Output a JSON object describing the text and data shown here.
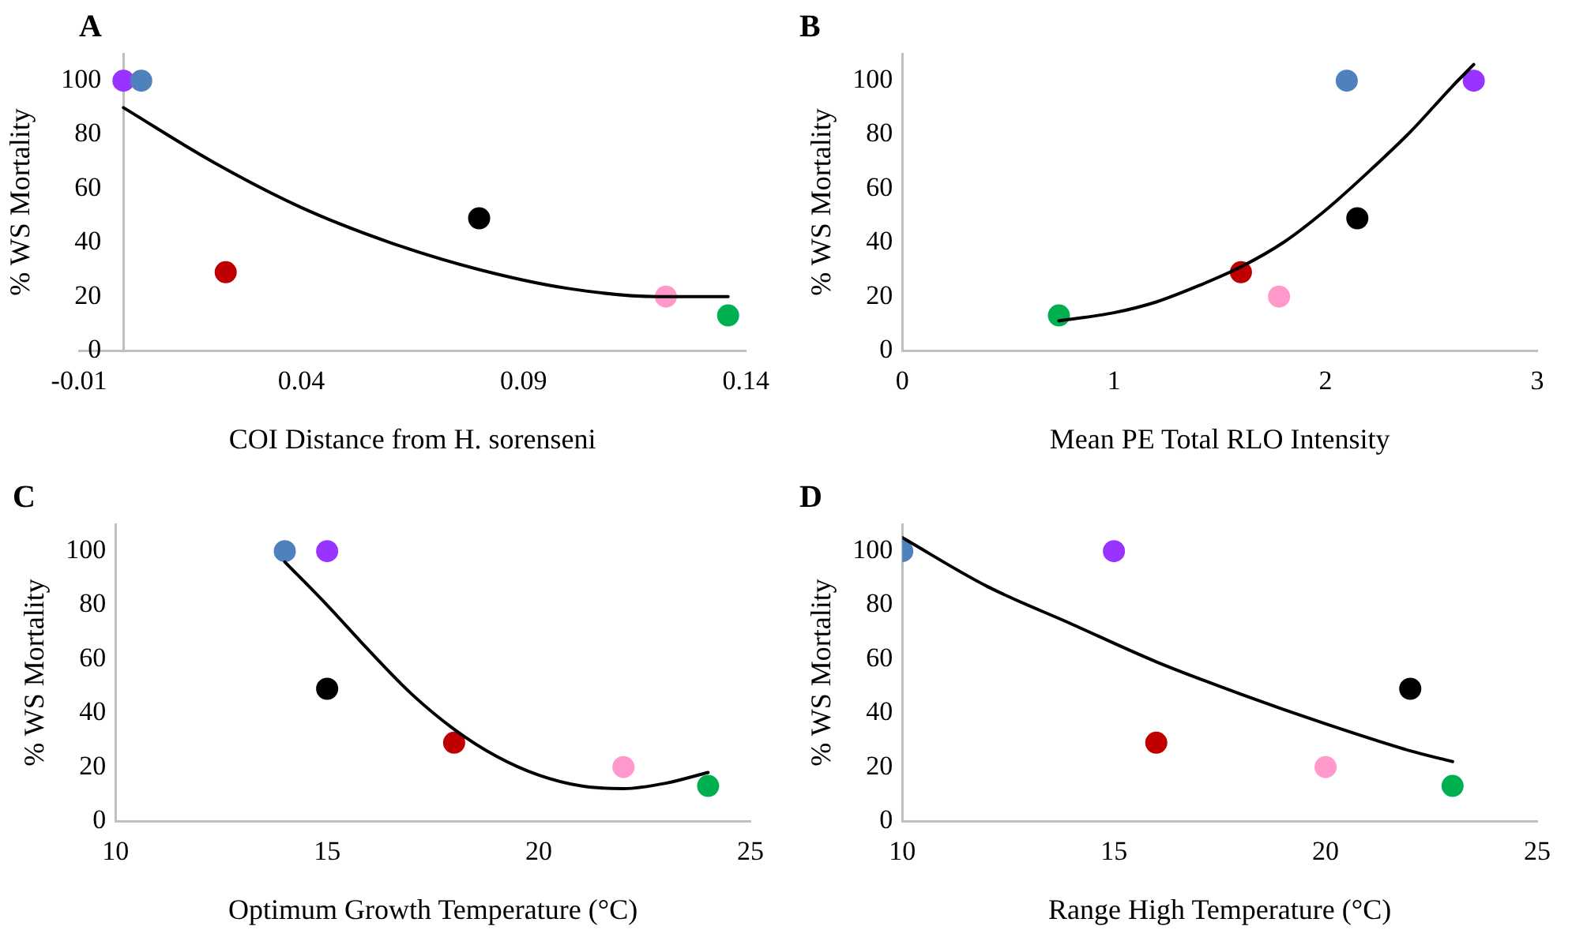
{
  "chart_data": [
    {
      "type": "scatter",
      "title": "A",
      "xlabel": "COI Distance from H. sorenseni",
      "ylabel": "% WS Mortality",
      "xlim": [
        -0.01,
        0.14
      ],
      "xticks": [
        -0.01,
        0.04,
        0.09,
        0.14
      ],
      "ylim": [
        0,
        110
      ],
      "yticks": [
        0,
        20,
        40,
        60,
        80,
        100
      ],
      "legend": false,
      "series": [
        {
          "type": "scatter",
          "x": [
            0.0,
            0.004,
            0.023,
            0.08,
            0.122,
            0.136
          ],
          "values": [
            100,
            100,
            29,
            49,
            20,
            13
          ],
          "colors": [
            "#9933ff",
            "#4f81bd",
            "#c00000",
            "#000000",
            "#ff99cc",
            "#00b050"
          ],
          "marker": "circle"
        },
        {
          "type": "line",
          "x": [
            0.0,
            0.02,
            0.04,
            0.06,
            0.08,
            0.1,
            0.12,
            0.136
          ],
          "values": [
            90,
            70,
            53,
            40,
            30,
            23,
            20,
            20
          ],
          "color": "#000000",
          "marker": "none"
        }
      ]
    },
    {
      "type": "scatter",
      "title": "B",
      "xlabel": "Mean PE Total RLO Intensity",
      "ylabel": "% WS Mortality",
      "xlim": [
        0,
        3
      ],
      "xticks": [
        0,
        1,
        2,
        3
      ],
      "ylim": [
        0,
        110
      ],
      "yticks": [
        0,
        20,
        40,
        60,
        80,
        100
      ],
      "legend": false,
      "series": [
        {
          "type": "scatter",
          "x": [
            0.74,
            1.6,
            1.78,
            2.1,
            2.15,
            2.7
          ],
          "values": [
            13,
            29,
            20,
            100,
            49,
            100
          ],
          "colors": [
            "#00b050",
            "#c00000",
            "#ff99cc",
            "#4f81bd",
            "#000000",
            "#9933ff"
          ],
          "marker": "circle"
        },
        {
          "type": "line",
          "x": [
            0.74,
            1.0,
            1.2,
            1.4,
            1.6,
            1.8,
            2.0,
            2.2,
            2.4,
            2.6,
            2.7
          ],
          "values": [
            11,
            14,
            18,
            24,
            31,
            40,
            52,
            66,
            81,
            98,
            106
          ],
          "color": "#000000",
          "marker": "none"
        }
      ]
    },
    {
      "type": "scatter",
      "title": "C",
      "xlabel": "Optimum Growth Temperature (°C)",
      "ylabel": "% WS Mortality",
      "xlim": [
        10,
        25
      ],
      "xticks": [
        10,
        15,
        20,
        25
      ],
      "ylim": [
        0,
        110
      ],
      "yticks": [
        0,
        20,
        40,
        60,
        80,
        100
      ],
      "legend": false,
      "series": [
        {
          "type": "scatter",
          "x": [
            14,
            15,
            15,
            18,
            22,
            24
          ],
          "values": [
            100,
            100,
            49,
            29,
            20,
            13
          ],
          "colors": [
            "#4f81bd",
            "#9933ff",
            "#000000",
            "#c00000",
            "#ff99cc",
            "#00b050"
          ],
          "marker": "circle"
        },
        {
          "type": "line",
          "x": [
            14,
            15,
            16,
            17,
            18,
            19,
            20,
            21,
            22,
            23,
            24
          ],
          "values": [
            96,
            80,
            63,
            47,
            34,
            24,
            17,
            13,
            12,
            14,
            18
          ],
          "color": "#000000",
          "marker": "none"
        }
      ]
    },
    {
      "type": "scatter",
      "title": "D",
      "xlabel": "Range High Temperature (°C)",
      "ylabel": "% WS Mortality",
      "xlim": [
        10,
        25
      ],
      "xticks": [
        10,
        15,
        20,
        25
      ],
      "ylim": [
        0,
        110
      ],
      "yticks": [
        0,
        20,
        40,
        60,
        80,
        100
      ],
      "legend": false,
      "series": [
        {
          "type": "scatter",
          "x": [
            10,
            15,
            16,
            20,
            22,
            23
          ],
          "values": [
            100,
            100,
            29,
            20,
            49,
            13
          ],
          "colors": [
            "#4f81bd",
            "#9933ff",
            "#c00000",
            "#ff99cc",
            "#000000",
            "#00b050"
          ],
          "marker": "circle"
        },
        {
          "type": "line",
          "x": [
            10,
            12,
            14,
            16,
            18,
            20,
            22,
            23
          ],
          "values": [
            105,
            87,
            73,
            59,
            47,
            36,
            26,
            22
          ],
          "color": "#000000",
          "marker": "none"
        }
      ]
    }
  ]
}
